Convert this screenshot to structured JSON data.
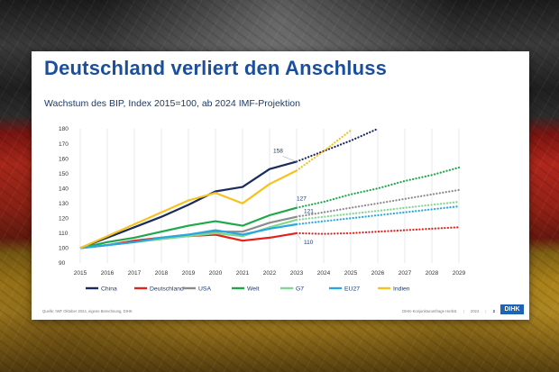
{
  "slide": {
    "title": "Deutschland verliert den Anschluss",
    "subtitle": "Wachstum des BIP, Index 2015=100, ab 2024 IMF-Projektion",
    "source": "Quelle: IWF Oktober 2024, eigene Berechnung, DIHK",
    "footer_label": "DIHK-Konjunkturumfrage Herbst",
    "footer_year": "2024",
    "page_number": "2",
    "logo_text": "DIHK"
  },
  "chart_data": {
    "type": "line",
    "x": [
      2015,
      2016,
      2017,
      2018,
      2019,
      2020,
      2021,
      2022,
      2023,
      2024,
      2025,
      2026,
      2027,
      2028,
      2029
    ],
    "xlim": [
      2015,
      2029
    ],
    "ylim": [
      90,
      180
    ],
    "yticks": [
      90,
      100,
      110,
      120,
      130,
      140,
      150,
      160,
      170,
      180
    ],
    "xticks": [
      2015,
      2016,
      2017,
      2018,
      2019,
      2020,
      2021,
      2022,
      2023,
      2024,
      2025,
      2026,
      2027,
      2028,
      2029
    ],
    "projection_from": 2023,
    "grid": "vertical",
    "legend_position": "bottom",
    "series": [
      {
        "name": "China",
        "color": "#1a2b5e",
        "values": [
          100,
          107,
          114,
          121,
          129,
          138,
          141,
          153,
          158,
          165,
          172,
          180,
          null,
          null,
          null
        ]
      },
      {
        "name": "Deutschland",
        "color": "#e3221c",
        "values": [
          100,
          102,
          105,
          107,
          108,
          109,
          105,
          107,
          110,
          109.5,
          110,
          111,
          112,
          113,
          114
        ]
      },
      {
        "name": "USA",
        "color": "#8c8c8c",
        "values": [
          100,
          102,
          104,
          107,
          109,
          111,
          111,
          117,
          121,
          124,
          127,
          130,
          133,
          136,
          139
        ]
      },
      {
        "name": "Welt",
        "color": "#1fa84a",
        "values": [
          100,
          104,
          107,
          111,
          115,
          118,
          115,
          122,
          127,
          131,
          136,
          140,
          145,
          149,
          154
        ]
      },
      {
        "name": "G7",
        "color": "#7ed88e",
        "values": [
          100,
          102,
          104,
          106,
          108,
          110,
          108,
          114,
          119,
          121,
          123,
          125,
          127,
          129,
          131
        ]
      },
      {
        "name": "EU27",
        "color": "#2aa6e0",
        "values": [
          100,
          102,
          104,
          107,
          109,
          112,
          109,
          113,
          116,
          118,
          120,
          122,
          124,
          126,
          128
        ]
      },
      {
        "name": "Indien",
        "color": "#f7c21d",
        "values": [
          100,
          108,
          116,
          124,
          132,
          137,
          130,
          143,
          152,
          165,
          179,
          null,
          null,
          null,
          null
        ]
      }
    ],
    "annotations": [
      {
        "text": "158",
        "series": "China",
        "x": 2023
      },
      {
        "text": "127",
        "series": "Welt",
        "x": 2023
      },
      {
        "text": "121",
        "series": "USA",
        "x": 2023
      },
      {
        "text": "110",
        "series": "Deutschland",
        "x": 2023
      }
    ]
  }
}
